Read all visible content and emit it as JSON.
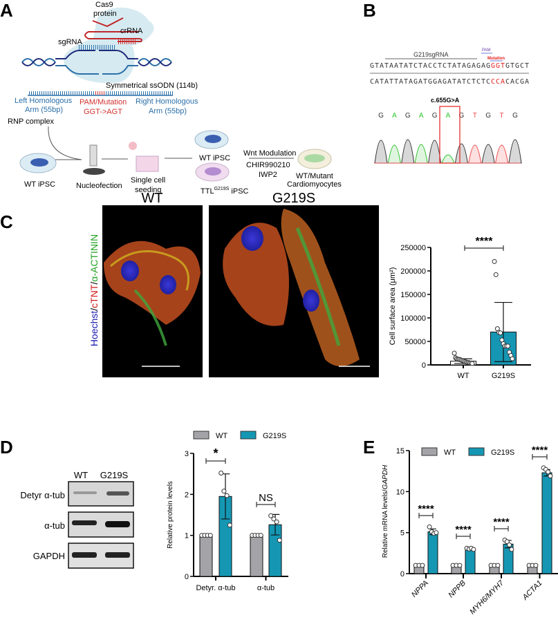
{
  "panels": {
    "a": "A",
    "b": "B",
    "c": "C",
    "d": "D",
    "e": "E"
  },
  "panel_a": {
    "cas9_line1": "Cas9",
    "cas9_line2": "protein",
    "crrna": "crRNA",
    "sgrna": "sgRNA",
    "ssodn": "Symmetrical ssODN (114b)",
    "left_arm_line1": "Left Homologous",
    "left_arm_line2": "Arm (55bp)",
    "pam_line1": "PAM/Mutation",
    "pam_line2": "GGT->AGT",
    "right_arm_line1": "Right Homologous",
    "right_arm_line2": "Arm (55bp)",
    "rnp": "RNP complex",
    "wt_ipsc": "WT iPSC",
    "nucleofection": "Nucleofection",
    "single_cell_line1": "Single cell",
    "single_cell_line2": "seeding",
    "wt_ipsc_2": "WT iPSC",
    "ttl_prefix": "TTL",
    "ttl_sup": "G219S",
    "ttl_suffix": " iPSC",
    "wnt": "Wnt Modulation",
    "chir": "CHIR990210",
    "iwp2": "IWP2",
    "cm_line1": "WT/Mutant",
    "cm_line2": "Cardiomyocytes"
  },
  "panel_b": {
    "sgrna_label": "G219sgRNA",
    "pam_label": "PAM",
    "mutation_label": "Mutation",
    "seq_top_a": "GTATAATATCTACCTCTATAGAGAG",
    "seq_top_mut": "GGT",
    "seq_top_b": "GTGCT",
    "seq_bottom_a": "CATATTATAGATGGAGATATCTCTC",
    "seq_bottom_mut": "CCA",
    "seq_bottom_b": "CACGA",
    "variant": "c.655G>A",
    "bases": [
      "G",
      "A",
      "G",
      "A",
      "G",
      "A",
      "G",
      "T",
      "G",
      "T",
      "G"
    ]
  },
  "panel_c": {
    "wt_title": "WT",
    "mut_title": "G219S",
    "stain_hoechst": "Hoechst",
    "stain_slash1": "/",
    "stain_ctnt": "cTNT",
    "stain_slash2": "/",
    "stain_actinin": "α-ACTININ"
  },
  "panel_d": {
    "blot_lanes": [
      "WT",
      "G219S"
    ],
    "blot_rows": [
      "Detyr α-tub",
      "α-tub",
      "GAPDH"
    ]
  },
  "colors": {
    "wt": "#a4a4a8",
    "g219s": "#1597b4",
    "ssodn_blue": "#2a6fa8",
    "mutation_red": "#d0312d"
  },
  "chart_data": [
    {
      "type": "bar",
      "panel": "C",
      "ylabel": "Cell surface area (μm²)",
      "categories": [
        "WT",
        "G219S"
      ],
      "ylim": [
        0,
        250000
      ],
      "yticks": [
        "0",
        "50000",
        "100000",
        "150000",
        "200000",
        "250000"
      ],
      "means": [
        8000,
        70000
      ],
      "sd": [
        5000,
        63000
      ],
      "points": [
        [
          25000,
          15000,
          13000,
          12000,
          12000,
          11000,
          10000,
          9000,
          8000,
          7000,
          6000,
          5000,
          5000,
          4000,
          4000,
          3000
        ],
        [
          220000,
          192000,
          77000,
          69000,
          68000,
          53000,
          45000,
          40000,
          40000,
          40000,
          27000,
          20000,
          13000
        ]
      ],
      "significance": [
        "****"
      ]
    },
    {
      "type": "bar",
      "panel": "D",
      "ylabel": "Relative protein levels",
      "categories": [
        "Detyr. α-tub",
        "α-tub"
      ],
      "ylim": [
        0,
        3
      ],
      "yticks": [
        "0",
        "1",
        "2",
        "3"
      ],
      "legend": "top",
      "series": [
        {
          "name": "WT",
          "values": [
            1,
            1
          ],
          "sd": [
            0,
            0
          ],
          "points": [
            [
              1,
              1,
              1,
              1
            ],
            [
              1,
              1,
              1,
              1
            ]
          ]
        },
        {
          "name": "G219S",
          "values": [
            1.95,
            1.26
          ],
          "sd": [
            0.55,
            0.25
          ],
          "points": [
            [
              2.52,
              2.08,
              1.97,
              1.25
            ],
            [
              1.48,
              1.4,
              1.33,
              0.88
            ]
          ]
        }
      ],
      "significance": [
        "*",
        "NS"
      ]
    },
    {
      "type": "bar",
      "panel": "E",
      "ylabel_prefix": "Relative mRNA levels/",
      "ylabel_italic": "GAPDH",
      "categories": [
        "NPPA",
        "NPPB",
        "MYH6/MYH7",
        "ACTA1"
      ],
      "ylim": [
        0,
        15
      ],
      "yticks": [
        "0",
        "5",
        "10",
        "15"
      ],
      "legend": "top",
      "series": [
        {
          "name": "WT",
          "values": [
            1,
            1,
            1,
            1
          ],
          "sd": [
            0,
            0,
            0,
            0
          ],
          "points": [
            [
              1,
              1,
              1
            ],
            [
              1,
              1,
              1
            ],
            [
              1,
              1,
              1
            ],
            [
              1,
              1,
              1
            ]
          ]
        },
        {
          "name": "G219S",
          "values": [
            5.1,
            3.05,
            3.6,
            12.3
          ],
          "sd": [
            0.35,
            0.1,
            0.45,
            0.4
          ],
          "points": [
            [
              5.7,
              5.1,
              4.9,
              5.0
            ],
            [
              3.1,
              3.0,
              3.1,
              2.95
            ],
            [
              4.1,
              3.9,
              3.5,
              2.95
            ],
            [
              12.9,
              12.7,
              12.4,
              11.9
            ]
          ]
        }
      ],
      "significance": [
        "****",
        "****",
        "****",
        "****"
      ]
    }
  ]
}
